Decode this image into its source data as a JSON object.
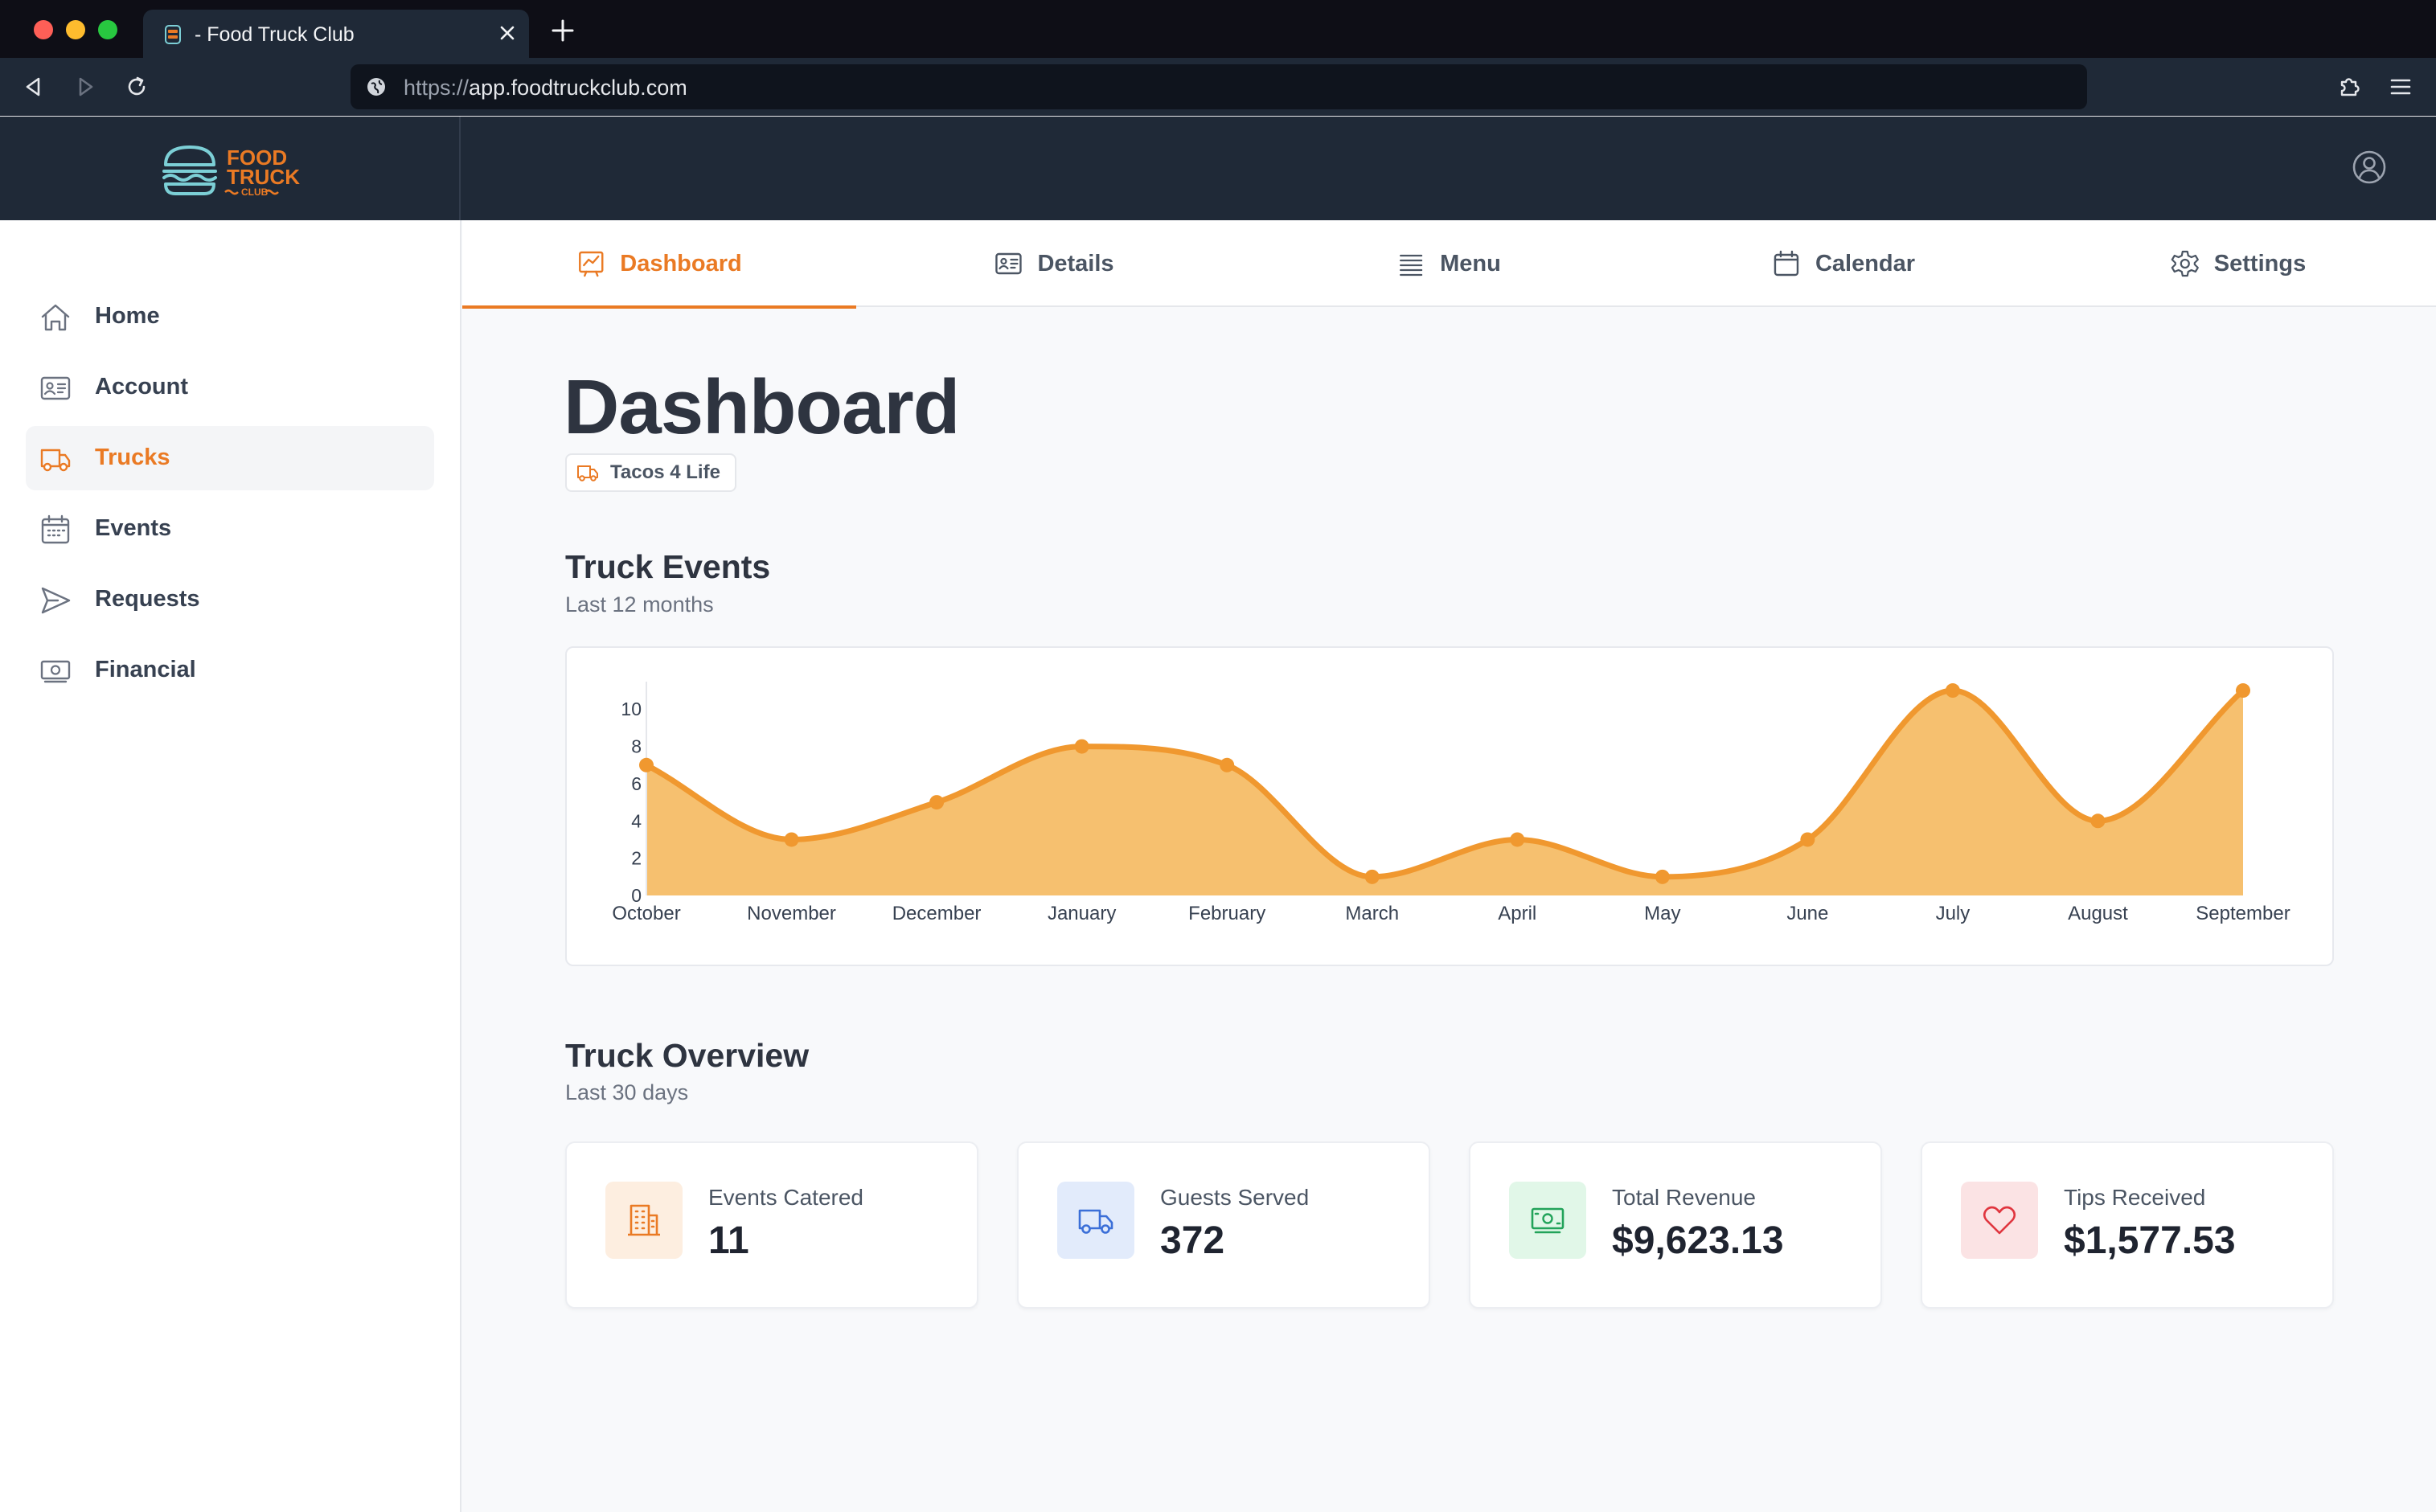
{
  "browser": {
    "tab_title": "- Food Truck Club",
    "url_scheme": "https://",
    "url_host": "app.foodtruckclub.com"
  },
  "logo": {
    "line1": "FOOD",
    "line2": "TRUCK",
    "line3": "CLUB"
  },
  "sidebar": {
    "items": [
      {
        "label": "Home",
        "icon": "home-icon"
      },
      {
        "label": "Account",
        "icon": "id-card-icon"
      },
      {
        "label": "Trucks",
        "icon": "truck-icon",
        "active": true
      },
      {
        "label": "Events",
        "icon": "calendar-icon"
      },
      {
        "label": "Requests",
        "icon": "send-icon"
      },
      {
        "label": "Financial",
        "icon": "cash-icon"
      }
    ]
  },
  "tabs": [
    {
      "label": "Dashboard",
      "icon": "chart-icon",
      "active": true
    },
    {
      "label": "Details",
      "icon": "id-card-icon"
    },
    {
      "label": "Menu",
      "icon": "list-icon"
    },
    {
      "label": "Calendar",
      "icon": "calendar-icon"
    },
    {
      "label": "Settings",
      "icon": "gear-icon"
    }
  ],
  "page": {
    "title": "Dashboard",
    "truck_name": "Tacos 4 Life"
  },
  "events_section": {
    "title": "Truck Events",
    "subtitle": "Last 12 months"
  },
  "overview_section": {
    "title": "Truck Overview",
    "subtitle": "Last 30 days"
  },
  "stats": [
    {
      "label": "Events Catered",
      "value": "11",
      "icon": "building-icon",
      "color": "#ea7a24",
      "bg": "#fdeee0"
    },
    {
      "label": "Guests Served",
      "value": "372",
      "icon": "truck-icon",
      "color": "#3b6fd8",
      "bg": "#e2ebfb"
    },
    {
      "label": "Total Revenue",
      "value": "$9,623.13",
      "icon": "cash-icon",
      "color": "#22a35a",
      "bg": "#e1f7e8"
    },
    {
      "label": "Tips Received",
      "value": "$1,577.53",
      "icon": "heart-icon",
      "color": "#e0363f",
      "bg": "#fbe3e4"
    }
  ],
  "colors": {
    "accent": "#ea7a24",
    "chart_line": "#f0982f",
    "chart_fill": "#f6c06f"
  },
  "chart_data": {
    "type": "area",
    "categories": [
      "October",
      "November",
      "December",
      "January",
      "February",
      "March",
      "April",
      "May",
      "June",
      "July",
      "August",
      "September"
    ],
    "values": [
      7,
      3,
      5,
      8,
      7,
      1,
      3,
      1,
      3,
      11,
      4,
      11
    ],
    "yticks": [
      "0",
      "2",
      "4",
      "6",
      "8",
      "10"
    ],
    "ylim": [
      0,
      10.7
    ],
    "grid": false,
    "legend": "none"
  }
}
